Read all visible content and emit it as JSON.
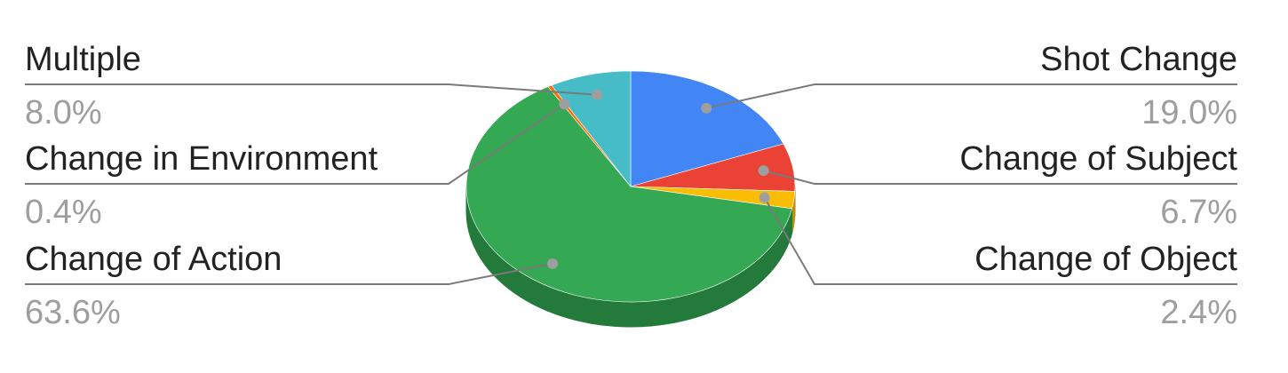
{
  "chart_data": {
    "type": "pie",
    "style": "3d",
    "title": "",
    "legend": "labels-outside-with-leader-lines",
    "slices": [
      {
        "label": "Shot Change",
        "value": 19.0,
        "value_label": "19.0%",
        "color": "#4285f4",
        "side_color": "#2f63b8",
        "side": "right",
        "row": 0
      },
      {
        "label": "Change of Subject",
        "value": 6.7,
        "value_label": "6.7%",
        "color": "#ea4335",
        "side_color": "#b23125",
        "side": "right",
        "row": 1
      },
      {
        "label": "Change of Object",
        "value": 2.4,
        "value_label": "2.4%",
        "color": "#fbbc04",
        "side_color": "#c08f00",
        "side": "right",
        "row": 2
      },
      {
        "label": "Change of Action",
        "value": 63.6,
        "value_label": "63.6%",
        "color": "#34a853",
        "side_color": "#237a3b",
        "side": "left",
        "row": 2
      },
      {
        "label": "Change in Environment",
        "value": 0.4,
        "value_label": "0.4%",
        "color": "#ff6d01",
        "side_color": "#c05200",
        "side": "left",
        "row": 1
      },
      {
        "label": "Multiple",
        "value": 8.0,
        "value_label": "8.0%",
        "color": "#46bdc6",
        "side_color": "#33929a",
        "side": "left",
        "row": 0
      }
    ]
  }
}
